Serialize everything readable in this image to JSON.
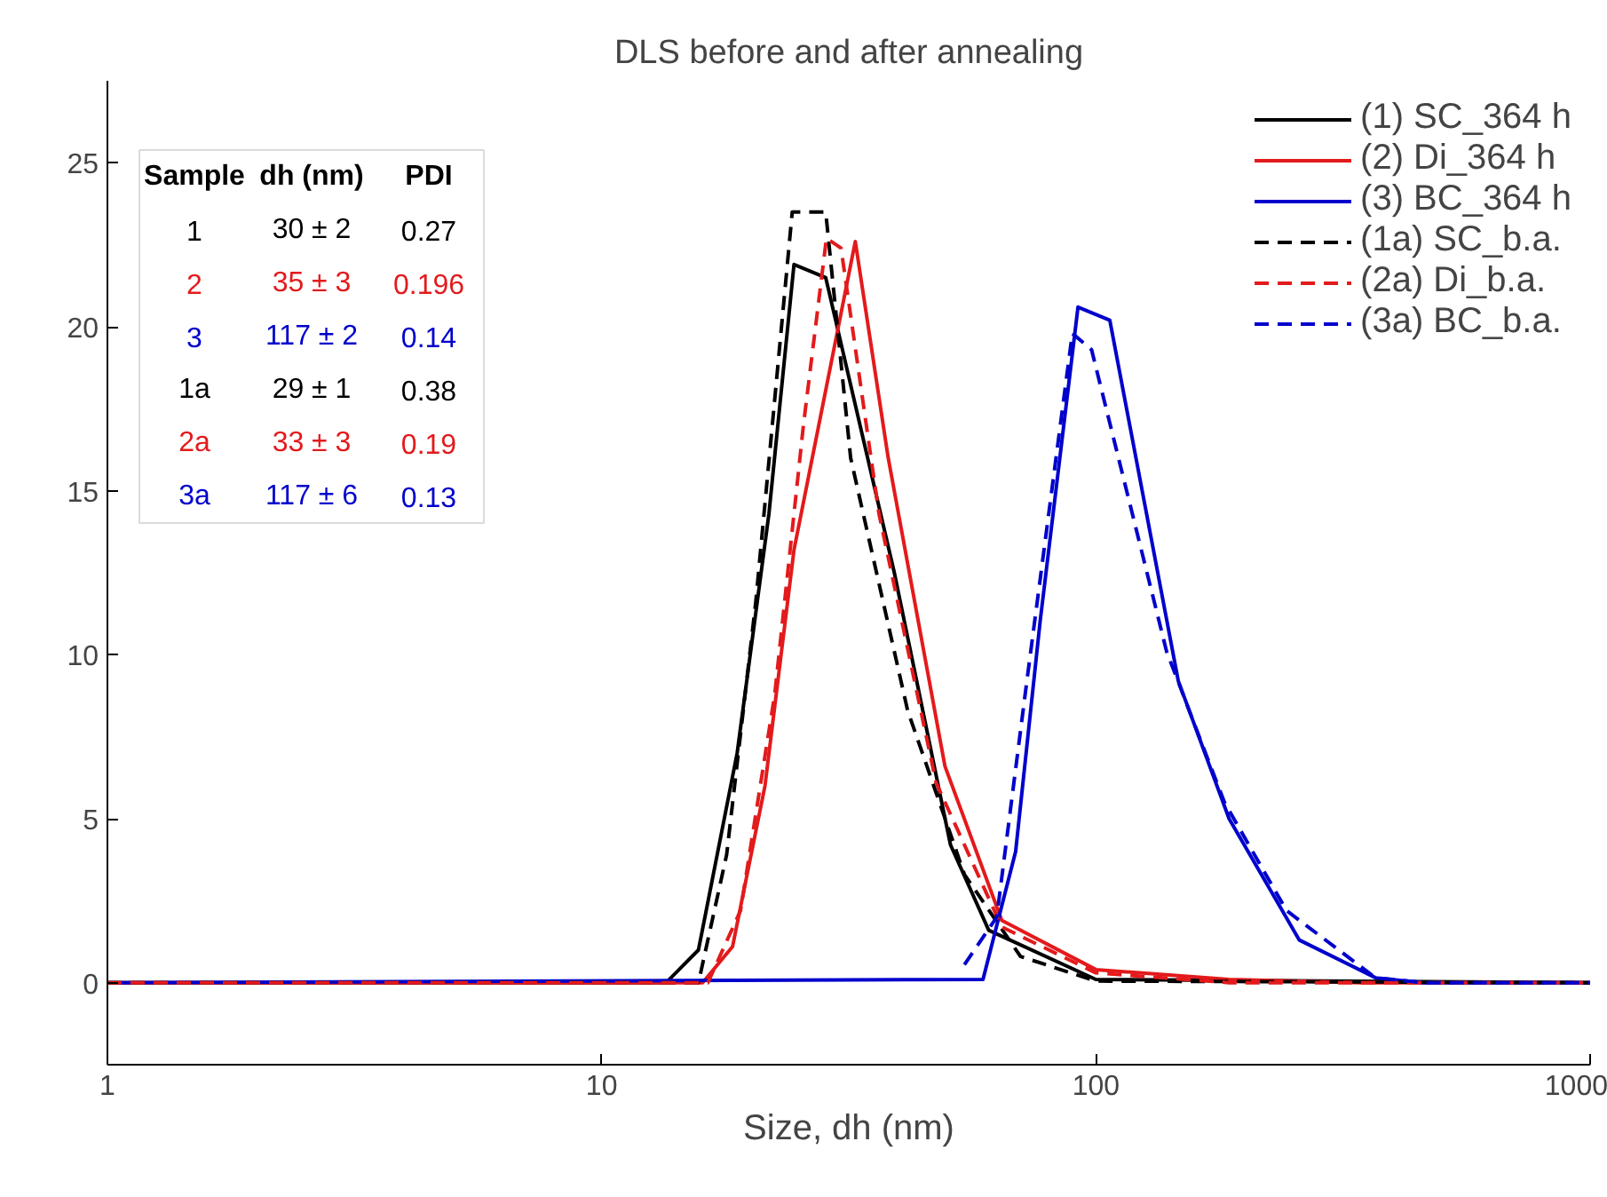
{
  "chart_data": {
    "type": "line",
    "title": "DLS before and after annealing",
    "xlabel": "Size, dh (nm)",
    "log": "x",
    "xlim": [
      1,
      1000
    ],
    "xticks": [
      1,
      10,
      100,
      1000
    ],
    "ylim": [
      -2.5,
      27.5
    ],
    "yticks": [
      0,
      5,
      10,
      15,
      20,
      25
    ],
    "grid": false,
    "legend": "top right",
    "marker": "none",
    "series": [
      {
        "name": "(1) SC_364 h",
        "color": "#000000",
        "line_style": "solid",
        "x": [
          1,
          13.5,
          15.7,
          18.8,
          21.8,
          24.5,
          28.4,
          39.1,
          50.8,
          60.7,
          100,
          1000
        ],
        "values": [
          0,
          0,
          1.0,
          7,
          14.3,
          21.9,
          21.5,
          12.5,
          4.2,
          1.6,
          0.1,
          0
        ]
      },
      {
        "name": "(2) Di_364 h",
        "color": "#e31a1c",
        "line_style": "solid",
        "x": [
          1,
          16,
          18.4,
          21.4,
          24.5,
          32.6,
          38,
          49.5,
          64.5,
          100,
          186,
          347,
          1000
        ],
        "values": [
          0,
          0,
          1.1,
          6,
          13.2,
          22.6,
          16,
          6.6,
          1.9,
          0.4,
          0.1,
          0,
          0
        ]
      },
      {
        "name": "(3) BC_364 h",
        "color": "#0000cc",
        "line_style": "solid",
        "x": [
          1,
          59.1,
          68.8,
          77.1,
          92.0,
          106.7,
          146.8,
          186,
          258,
          368,
          460,
          1000
        ],
        "values": [
          0,
          0.1,
          4.0,
          11,
          20.6,
          20.2,
          9.2,
          5.0,
          1.3,
          0.15,
          0,
          0
        ]
      },
      {
        "name": "(1a) SC_b.a.",
        "color": "#000000",
        "line_style": "dashed",
        "x": [
          1,
          15.7,
          17.9,
          20.5,
          24.3,
          28.4,
          31.9,
          41.6,
          54.2,
          70.4,
          100,
          1000
        ],
        "values": [
          0,
          0,
          3.9,
          11.6,
          23.5,
          23.5,
          16,
          8.3,
          3.3,
          0.8,
          0.05,
          0
        ]
      },
      {
        "name": "(2a) Di_b.a.",
        "color": "#e31a1c",
        "line_style": "dashed",
        "x": [
          1,
          16.4,
          19.1,
          22.4,
          25.6,
          28.5,
          30.5,
          36.4,
          47.5,
          64.5,
          100,
          186,
          1000
        ],
        "values": [
          0,
          0,
          2.2,
          8.8,
          17,
          22.7,
          22.4,
          14.3,
          6.1,
          1.7,
          0.3,
          0,
          0
        ]
      },
      {
        "name": "(3a) BC_b.a.",
        "color": "#0000cc",
        "line_style": "dashed",
        "x": [
          54.2,
          63.0,
          72.5,
          89.6,
          98,
          139,
          182,
          243,
          368,
          460,
          1000
        ],
        "values": [
          0.55,
          2.0,
          9.2,
          19.8,
          19.3,
          10.1,
          5.5,
          2.2,
          0.15,
          0,
          0
        ]
      }
    ],
    "annotations": [
      "Sample",
      "dh (nm)",
      "PDI",
      "1",
      "30 ± 2",
      "0.27",
      "2",
      "35 ± 3",
      "0.196",
      "3",
      "117 ± 2",
      "0.14",
      "1a",
      "29 ± 1",
      "0.38",
      "2a",
      "33 ± 3",
      "0.19",
      "3a",
      "117 ± 6",
      "0.13"
    ]
  }
}
